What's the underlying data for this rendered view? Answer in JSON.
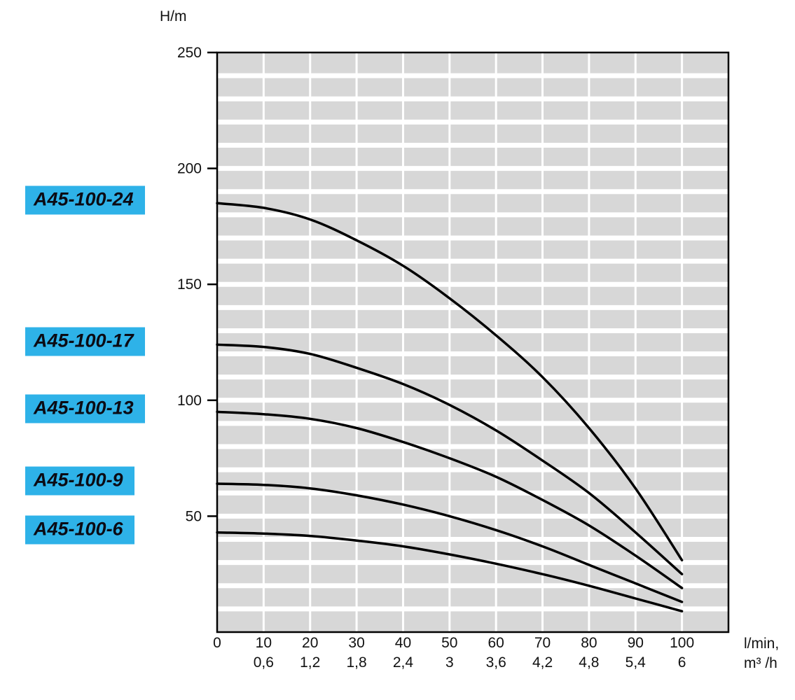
{
  "y_axis": {
    "label": "H/m",
    "ticks": [
      250,
      200,
      150,
      100,
      50
    ]
  },
  "x_axis": {
    "ticks_lmin": [
      "0",
      "10",
      "20",
      "30",
      "40",
      "50",
      "60",
      "70",
      "80",
      "90",
      "100"
    ],
    "ticks_m3h": [
      "",
      "0,6",
      "1,2",
      "1,8",
      "2,4",
      "3",
      "3,6",
      "4,2",
      "4,8",
      "5,4",
      "6"
    ],
    "unit_line1": "l/min,",
    "unit_line2": "m³ /h"
  },
  "chart_data": {
    "type": "line",
    "title": "",
    "xlabel": "l/min, m³/h",
    "ylabel": "H/m",
    "xlim": [
      0,
      110
    ],
    "ylim": [
      0,
      250
    ],
    "grid": true,
    "legend_position": "left",
    "x": [
      0,
      10,
      20,
      30,
      40,
      50,
      60,
      70,
      80,
      90,
      100
    ],
    "series": [
      {
        "name": "A45-100-24",
        "values": [
          185,
          183,
          178,
          169,
          158,
          144,
          128,
          110,
          88,
          62,
          31
        ]
      },
      {
        "name": "A45-100-17",
        "values": [
          124,
          123,
          120,
          114,
          107,
          98,
          87,
          74,
          60,
          43,
          25
        ]
      },
      {
        "name": "A45-100-13",
        "values": [
          95,
          94,
          92,
          88,
          82,
          75,
          67,
          57,
          46,
          33,
          19
        ]
      },
      {
        "name": "A45-100-9",
        "values": [
          64,
          63.5,
          62,
          59,
          55,
          50,
          44,
          37,
          29,
          21,
          13
        ]
      },
      {
        "name": "A45-100-6",
        "values": [
          43,
          42.5,
          41.5,
          39.5,
          37,
          33.5,
          29.5,
          25,
          20,
          14.5,
          9
        ]
      }
    ]
  },
  "colors": {
    "series_label_bg": "#2eb2e8",
    "plot_bg": "#d7d7d7",
    "grid_line": "#ffffff",
    "curve": "#000000",
    "axis": "#000000"
  }
}
